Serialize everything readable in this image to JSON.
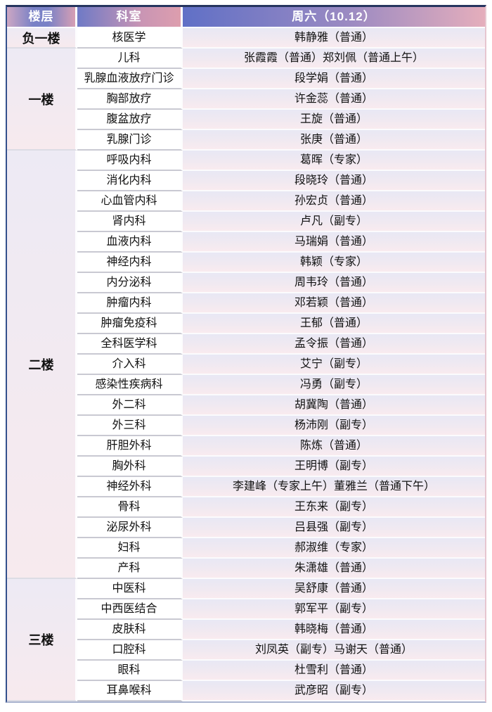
{
  "table": {
    "headers": {
      "floor": "楼层",
      "department": "科室",
      "day": "周六（10.12）"
    },
    "floors": [
      {
        "label": "负一楼",
        "rows": [
          {
            "dept": "核医学",
            "schedule": "韩静雅（普通）"
          }
        ]
      },
      {
        "label": "一楼",
        "rows": [
          {
            "dept": "儿科",
            "schedule": "张霞霞（普通）郑刘佩（普通上午）"
          },
          {
            "dept": "乳腺血液放疗门诊",
            "schedule": "段学娟（普通）"
          },
          {
            "dept": "胸部放疗",
            "schedule": "许金蕊（普通）"
          },
          {
            "dept": "腹盆放疗",
            "schedule": "王旋（普通）"
          },
          {
            "dept": "乳腺门诊",
            "schedule": "张庚（普通）"
          }
        ]
      },
      {
        "label": "二楼",
        "rows": [
          {
            "dept": "呼吸内科",
            "schedule": "葛晖（专家）"
          },
          {
            "dept": "消化内科",
            "schedule": "段晓玲（普通）"
          },
          {
            "dept": "心血管内科",
            "schedule": "孙宏贞（普通）"
          },
          {
            "dept": "肾内科",
            "schedule": "卢凡（副专）"
          },
          {
            "dept": "血液内科",
            "schedule": "马瑞娟（普通）"
          },
          {
            "dept": "神经内科",
            "schedule": "韩颖（专家）"
          },
          {
            "dept": "内分泌科",
            "schedule": "周韦玲（普通）"
          },
          {
            "dept": "肿瘤内科",
            "schedule": "邓若颖（普通）"
          },
          {
            "dept": "肿瘤免疫科",
            "schedule": "王郁（普通）"
          },
          {
            "dept": "全科医学科",
            "schedule": "孟令振（普通）"
          },
          {
            "dept": "介入科",
            "schedule": "艾宁（副专）"
          },
          {
            "dept": "感染性疾病科",
            "schedule": "冯勇（副专）"
          },
          {
            "dept": "外二科",
            "schedule": "胡冀陶（普通）"
          },
          {
            "dept": "外三科",
            "schedule": "杨沛刚（副专）"
          },
          {
            "dept": "肝胆外科",
            "schedule": "陈炼（普通）"
          },
          {
            "dept": "胸外科",
            "schedule": "王明博（副专）"
          },
          {
            "dept": "神经外科",
            "schedule": "李建峰（专家上午）董雅兰（普通下午）"
          },
          {
            "dept": "骨科",
            "schedule": "王东来（副专）"
          },
          {
            "dept": "泌尿外科",
            "schedule": "吕县强（副专）"
          },
          {
            "dept": "妇科",
            "schedule": "郝淑维（专家）"
          },
          {
            "dept": "产科",
            "schedule": "朱潇雄（普通）"
          }
        ]
      },
      {
        "label": "三楼",
        "rows": [
          {
            "dept": "中医科",
            "schedule": "吴舒康（普通）"
          },
          {
            "dept": "中西医结合",
            "schedule": "郭军平（副专）"
          },
          {
            "dept": "皮肤科",
            "schedule": "韩晓梅（普通）"
          },
          {
            "dept": "口腔科",
            "schedule": "刘凤英（副专）马谢天（普通）"
          },
          {
            "dept": "眼科",
            "schedule": "杜雪利（普通）"
          },
          {
            "dept": "耳鼻喉科",
            "schedule": "武彦昭（副专）"
          }
        ]
      }
    ],
    "colors": {
      "header_blue": "#6070c6",
      "header_pink": "#e5aebc",
      "row_top_lavender": "#e8e8f4",
      "row_bottom_pink": "#f9ebef",
      "border_navy": "#26355f",
      "border_left_blue": "#33508c"
    }
  }
}
